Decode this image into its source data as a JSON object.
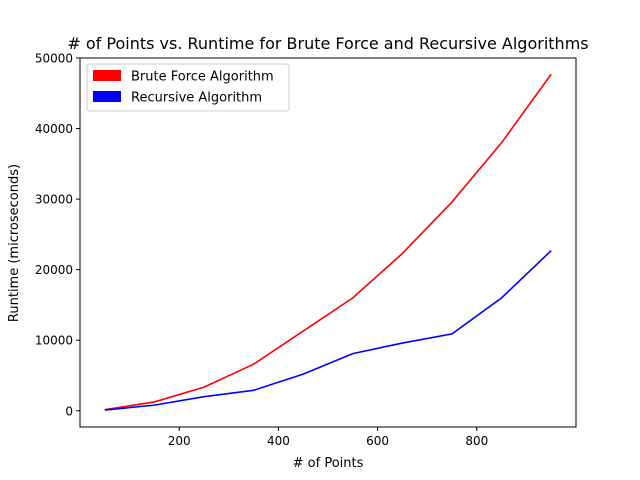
{
  "chart_data": {
    "type": "line",
    "title": "# of Points vs. Runtime for Brute Force and Recursive Algorithms",
    "xlabel": "# of Points",
    "ylabel": "Runtime (microseconds)",
    "xlim": [
      0,
      1000
    ],
    "ylim": [
      -2300,
      50000
    ],
    "x_ticks": [
      200,
      400,
      600,
      800
    ],
    "y_ticks": [
      0,
      10000,
      20000,
      30000,
      40000,
      50000
    ],
    "grid": false,
    "legend_position": "top-left",
    "x": [
      50,
      150,
      250,
      350,
      450,
      550,
      650,
      750,
      850,
      950
    ],
    "series": [
      {
        "name": "Brute Force Algorithm",
        "color": "#ff0000",
        "values": [
          150,
          1250,
          3350,
          6600,
          11300,
          16000,
          22300,
          29600,
          38000,
          47700
        ]
      },
      {
        "name": "Recursive Algorithm",
        "color": "#0000ff",
        "values": [
          100,
          800,
          2000,
          2900,
          5200,
          8100,
          9600,
          10900,
          16000,
          22700
        ]
      }
    ]
  }
}
